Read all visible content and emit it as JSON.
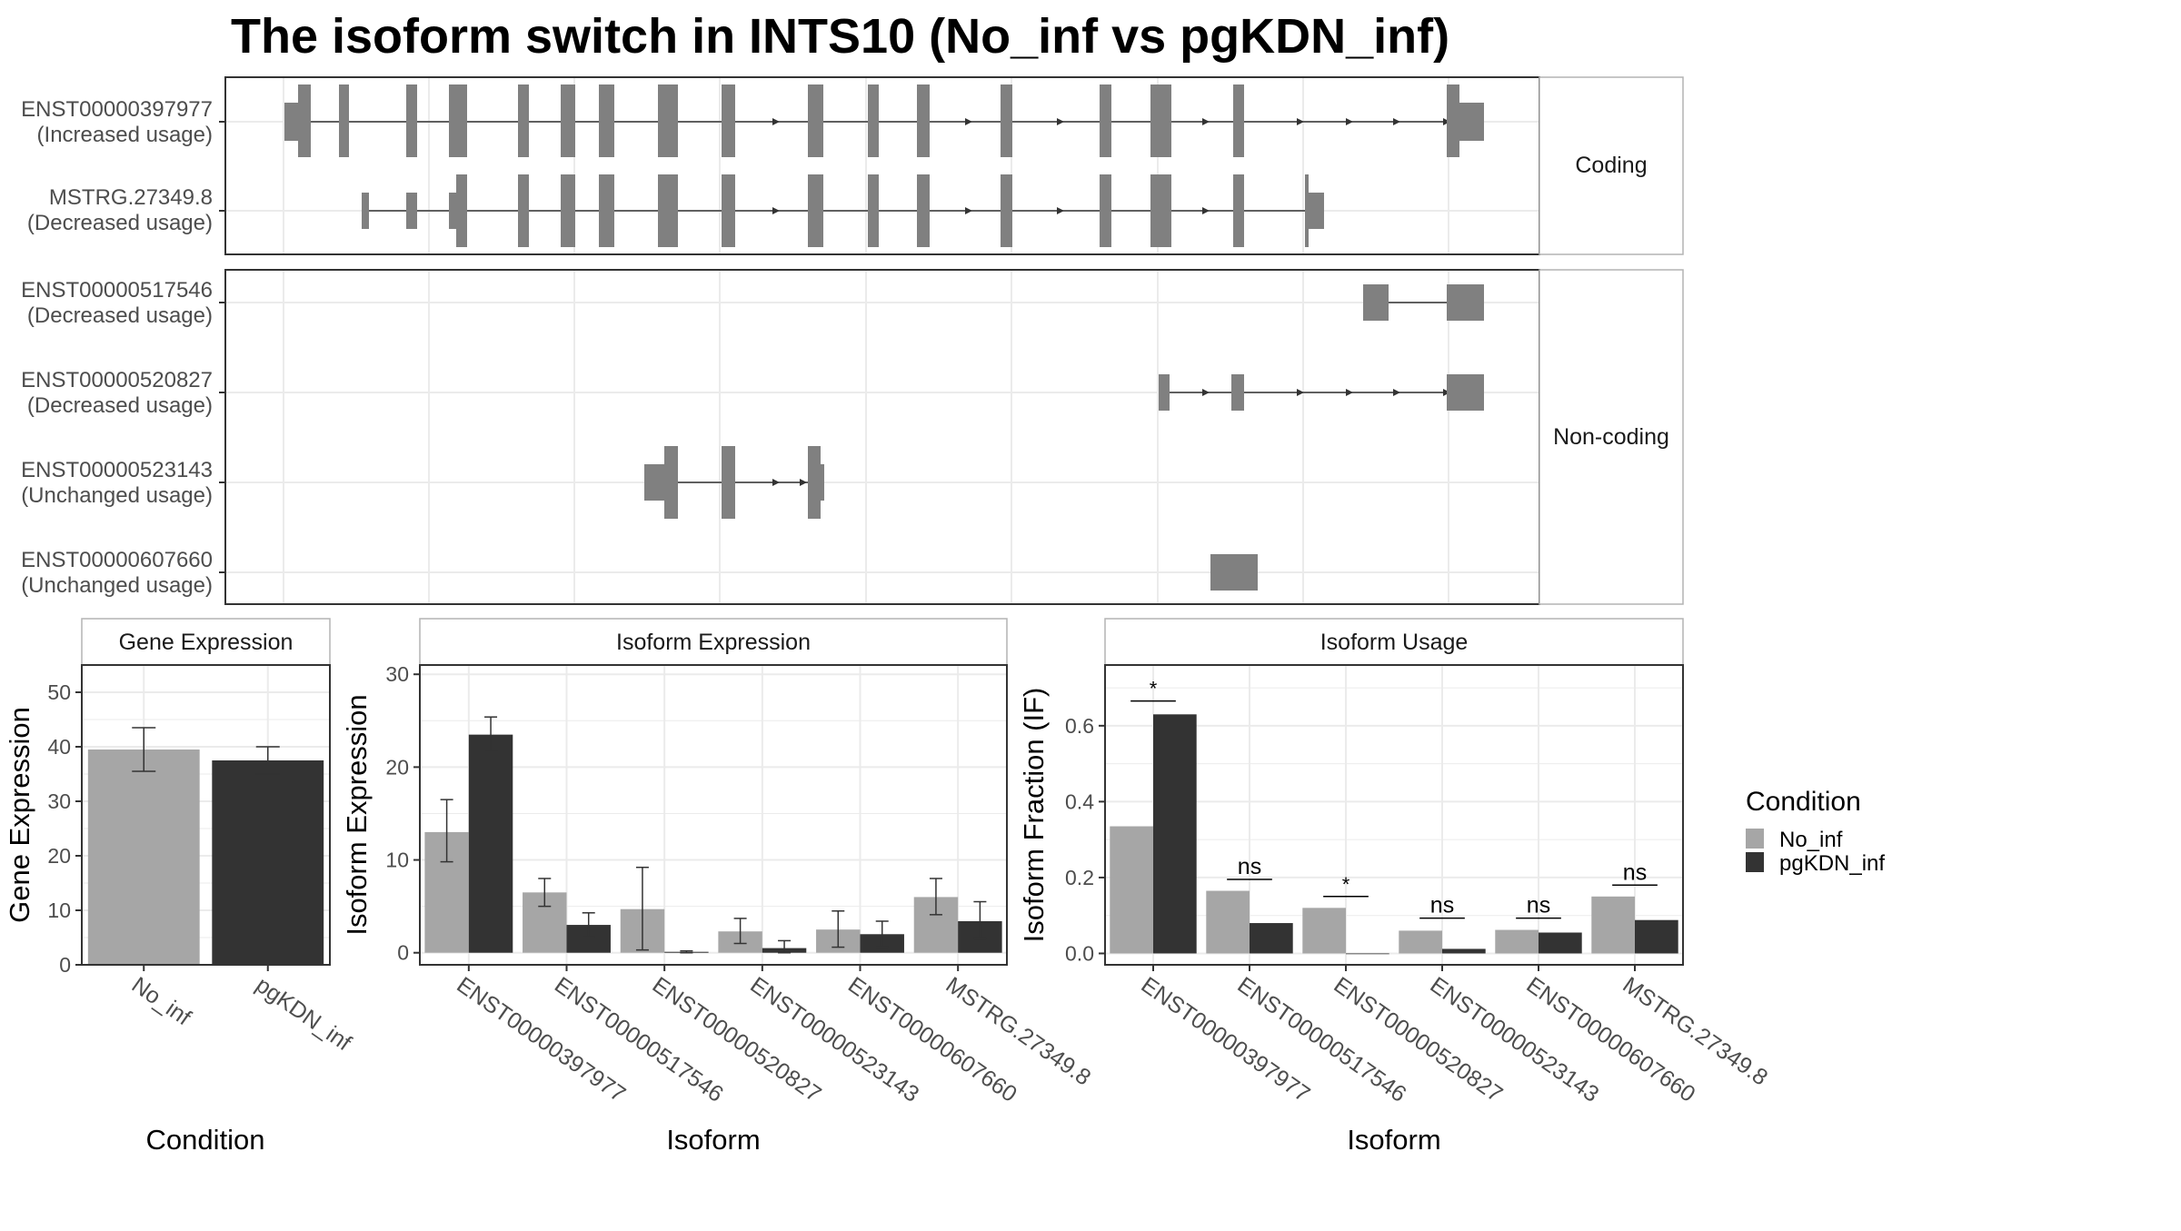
{
  "title": "The isoform switch in INTS10 (No_inf vs pgKDN_inf)",
  "colors": {
    "no_inf": "#a6a6a6",
    "pgkdn_inf": "#333333",
    "exon": "#808080",
    "grid": "#ebebeb",
    "panel_border": "#333333",
    "strip_border": "#b3b3b3"
  },
  "structure": {
    "panels": [
      {
        "strip": "Coding",
        "tracks": [
          {
            "id": "ENST00000397977",
            "usage": "(Increased usage)"
          },
          {
            "id": "MSTRG.27349.8",
            "usage": "(Decreased usage)"
          }
        ]
      },
      {
        "strip": "Non-coding",
        "tracks": [
          {
            "id": "ENST00000517546",
            "usage": "(Decreased usage)"
          },
          {
            "id": "ENST00000520827",
            "usage": "(Decreased usage)"
          },
          {
            "id": "ENST00000523143",
            "usage": "(Unchanged usage)"
          },
          {
            "id": "ENST00000607660",
            "usage": "(Unchanged usage)"
          }
        ]
      }
    ]
  },
  "legend": {
    "title": "Condition",
    "placement": "right",
    "entries": [
      "No_inf",
      "pgKDN_inf"
    ]
  },
  "chart_data": [
    {
      "type": "bar",
      "title": "Gene Expression",
      "xlabel": "Condition",
      "ylabel": "Gene Expression",
      "ylim": [
        0,
        55
      ],
      "yticks": [
        0,
        10,
        20,
        30,
        40,
        50
      ],
      "categories": [
        "No_inf",
        "pgKDN_inf"
      ],
      "values": [
        39.5,
        37.5
      ],
      "errors": [
        [
          35.5,
          43.5
        ],
        [
          35.0,
          40.0
        ]
      ]
    },
    {
      "type": "bar",
      "title": "Isoform Expression",
      "xlabel": "Isoform",
      "ylabel": "Isoform Expression",
      "ylim": [
        -1.3,
        31
      ],
      "yticks": [
        0,
        10,
        20,
        30
      ],
      "categories": [
        "ENST00000397977",
        "ENST00000517546",
        "ENST00000520827",
        "ENST00000523143",
        "ENST00000607660",
        "MSTRG.27349.8"
      ],
      "series": [
        {
          "name": "No_inf",
          "values": [
            13.0,
            6.5,
            4.7,
            2.3,
            2.5,
            6.0
          ],
          "errors": [
            [
              9.8,
              16.5
            ],
            [
              5.0,
              8.0
            ],
            [
              0.3,
              9.2
            ],
            [
              1.0,
              3.7
            ],
            [
              0.6,
              4.5
            ],
            [
              4.1,
              8.0
            ]
          ]
        },
        {
          "name": "pgKDN_inf",
          "values": [
            23.5,
            3.0,
            0.1,
            0.5,
            2.0,
            3.4
          ],
          "errors": [
            [
              21.7,
              25.4
            ],
            [
              1.7,
              4.3
            ],
            [
              0.0,
              0.2
            ],
            [
              0.0,
              1.3
            ],
            [
              0.6,
              3.4
            ],
            [
              1.5,
              5.5
            ]
          ]
        }
      ]
    },
    {
      "type": "bar",
      "title": "Isoform Usage",
      "xlabel": "Isoform",
      "ylabel": "Isoform Fraction (IF)",
      "ylim": [
        -0.03,
        0.76
      ],
      "yticks": [
        0.0,
        0.2,
        0.4,
        0.6
      ],
      "ytick_labels": [
        "0.0",
        "0.2",
        "0.4",
        "0.6"
      ],
      "categories": [
        "ENST00000397977",
        "ENST00000517546",
        "ENST00000520827",
        "ENST00000523143",
        "ENST00000607660",
        "MSTRG.27349.8"
      ],
      "series": [
        {
          "name": "No_inf",
          "values": [
            0.335,
            0.165,
            0.12,
            0.06,
            0.062,
            0.15
          ]
        },
        {
          "name": "pgKDN_inf",
          "values": [
            0.63,
            0.08,
            0.0,
            0.012,
            0.055,
            0.088
          ]
        }
      ],
      "significance": [
        "*",
        "ns",
        "*",
        "ns",
        "ns",
        "ns"
      ],
      "significance_y": [
        0.665,
        0.195,
        0.15,
        0.093,
        0.093,
        0.18
      ]
    }
  ]
}
